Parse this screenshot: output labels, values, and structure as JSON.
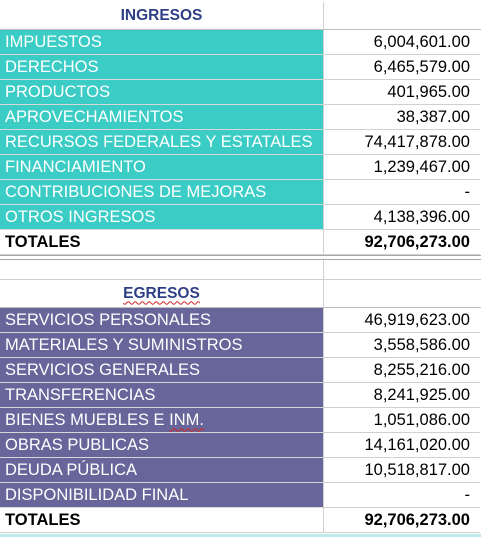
{
  "ingresos": {
    "title": "INGRESOS",
    "rows": [
      {
        "label": "IMPUESTOS",
        "value": "6,004,601.00"
      },
      {
        "label": "DERECHOS",
        "value": "6,465,579.00"
      },
      {
        "label": "PRODUCTOS",
        "value": "401,965.00"
      },
      {
        "label": "APROVECHAMIENTOS",
        "value": "38,387.00"
      },
      {
        "label": "RECURSOS FEDERALES Y ESTATALES",
        "value": "74,417,878.00"
      },
      {
        "label": "FINANCIAMIENTO",
        "value": "1,239,467.00"
      },
      {
        "label": "CONTRIBUCIONES DE MEJORAS",
        "value": "-"
      },
      {
        "label": "OTROS INGRESOS",
        "value": "4,138,396.00"
      }
    ],
    "total_label": "TOTALES",
    "total_value": "92,706,273.00",
    "color": "#3cccc6"
  },
  "egresos": {
    "title": "EGRESOS",
    "rows": [
      {
        "label": "SERVICIOS PERSONALES",
        "value": "46,919,623.00"
      },
      {
        "label": "MATERIALES Y SUMINISTROS",
        "value": "3,558,586.00"
      },
      {
        "label": "SERVICIOS GENERALES",
        "value": "8,255,216.00"
      },
      {
        "label": "TRANSFERENCIAS",
        "value": "8,241,925.00"
      },
      {
        "label": "BIENES MUEBLES E INM.",
        "value": "1,051,086.00"
      },
      {
        "label": "OBRAS PUBLICAS",
        "value": "14,161,020.00"
      },
      {
        "label": "DEUDA PÚBLICA",
        "value": "10,518,817.00"
      },
      {
        "label": "DISPONIBILIDAD FINAL",
        "value": "-"
      }
    ],
    "total_label": "TOTALES",
    "total_value": "92,706,273.00",
    "color": "#67659a"
  }
}
